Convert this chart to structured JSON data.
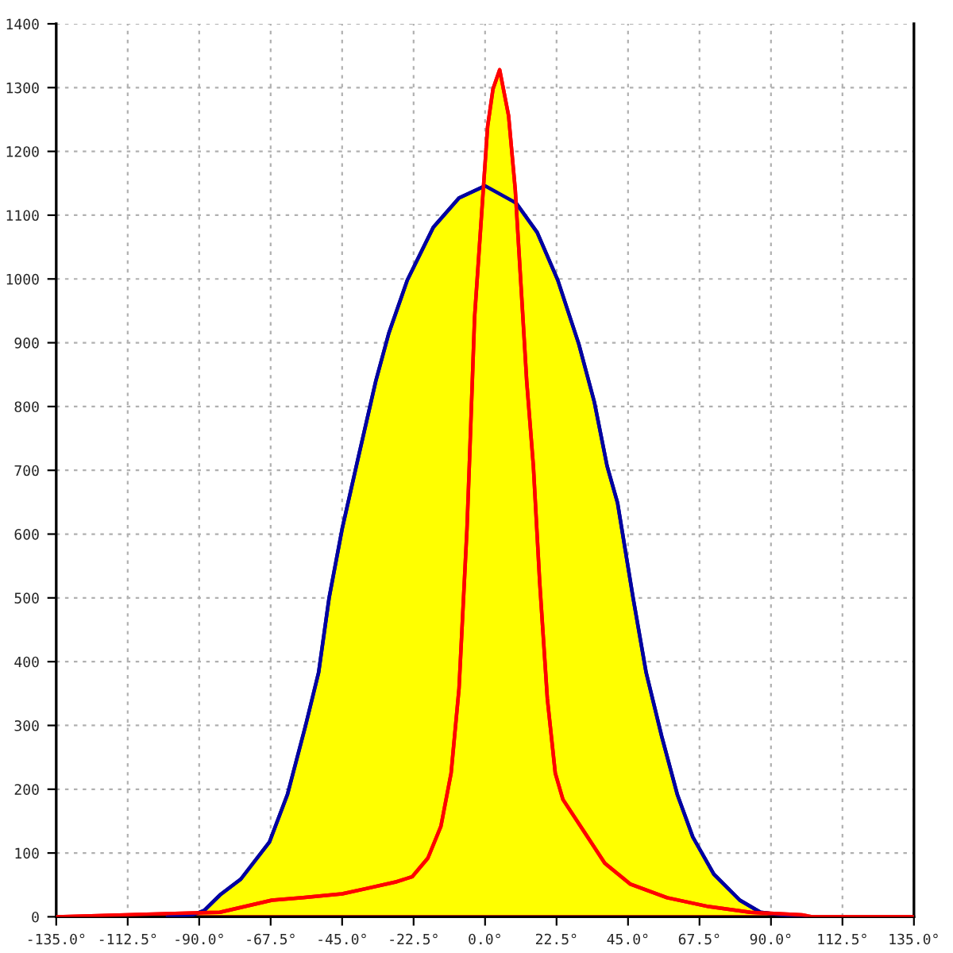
{
  "chart_data": {
    "type": "area",
    "series": [
      {
        "color": "#0000a0",
        "x": [
          -100,
          -92,
          -88.4,
          -83.5,
          -76.9,
          -67.9,
          -62.2,
          -56.5,
          -52.4,
          -49.1,
          -45,
          -40.1,
          -34.4,
          -30.3,
          -24.5,
          -16.3,
          -8.2,
          0,
          9.8,
          16.4,
          22.9,
          29.5,
          34.4,
          38.4,
          41.7,
          46.6,
          50.7,
          55.6,
          60.5,
          65.4,
          72,
          80.2,
          86.7,
          95,
          101
        ],
        "values": [
          0,
          3,
          10,
          34,
          59,
          117,
          192,
          300,
          383,
          500,
          608,
          716,
          840,
          915,
          998,
          1081,
          1127,
          1146,
          1119,
          1073,
          998,
          898,
          807,
          707,
          649,
          500,
          383,
          283,
          192,
          125,
          67,
          26,
          7,
          2,
          0
        ]
      },
      {
        "color": "#ff0000",
        "x": [
          -135,
          -100,
          -83.5,
          -67.1,
          -57.3,
          -45,
          -37.7,
          -27.8,
          -22.9,
          -18,
          -13.9,
          -10.7,
          -8.2,
          -5.7,
          -4.9,
          -3.3,
          -0.8,
          0.8,
          2.5,
          4.6,
          7.4,
          9.5,
          11.4,
          13.1,
          15.2,
          17.2,
          19.6,
          22.1,
          24.5,
          31.1,
          37.7,
          45.8,
          57.3,
          70.4,
          83.5,
          99.7,
          103,
          135
        ],
        "values": [
          0,
          5,
          7,
          26,
          30,
          36,
          44,
          55,
          63,
          92,
          142,
          225,
          358,
          608,
          716,
          940,
          1123,
          1239,
          1298,
          1328,
          1256,
          1140,
          982,
          840,
          707,
          524,
          342,
          225,
          184,
          134,
          84,
          51,
          30,
          16,
          7,
          3,
          0,
          0
        ]
      }
    ],
    "xlim": [
      -135,
      135
    ],
    "xticks": [
      {
        "value": -135,
        "label": "-135.0°"
      },
      {
        "value": -112.5,
        "label": "-112.5°"
      },
      {
        "value": -90,
        "label": "-90.0°"
      },
      {
        "value": -67.5,
        "label": "-67.5°"
      },
      {
        "value": -45,
        "label": "-45.0°"
      },
      {
        "value": -22.5,
        "label": "-22.5°"
      },
      {
        "value": 0,
        "label": "0.0°"
      },
      {
        "value": 22.5,
        "label": "22.5°"
      },
      {
        "value": 45,
        "label": "45.0°"
      },
      {
        "value": 67.5,
        "label": "67.5°"
      },
      {
        "value": 90,
        "label": "90.0°"
      },
      {
        "value": 112.5,
        "label": "112.5°"
      },
      {
        "value": 135,
        "label": "135.0°"
      }
    ],
    "ylim": [
      0,
      1400
    ],
    "yticks": [
      0,
      100,
      200,
      300,
      400,
      500,
      600,
      700,
      800,
      900,
      1000,
      1100,
      1200,
      1300,
      1400
    ],
    "grid": true,
    "legend": false
  }
}
